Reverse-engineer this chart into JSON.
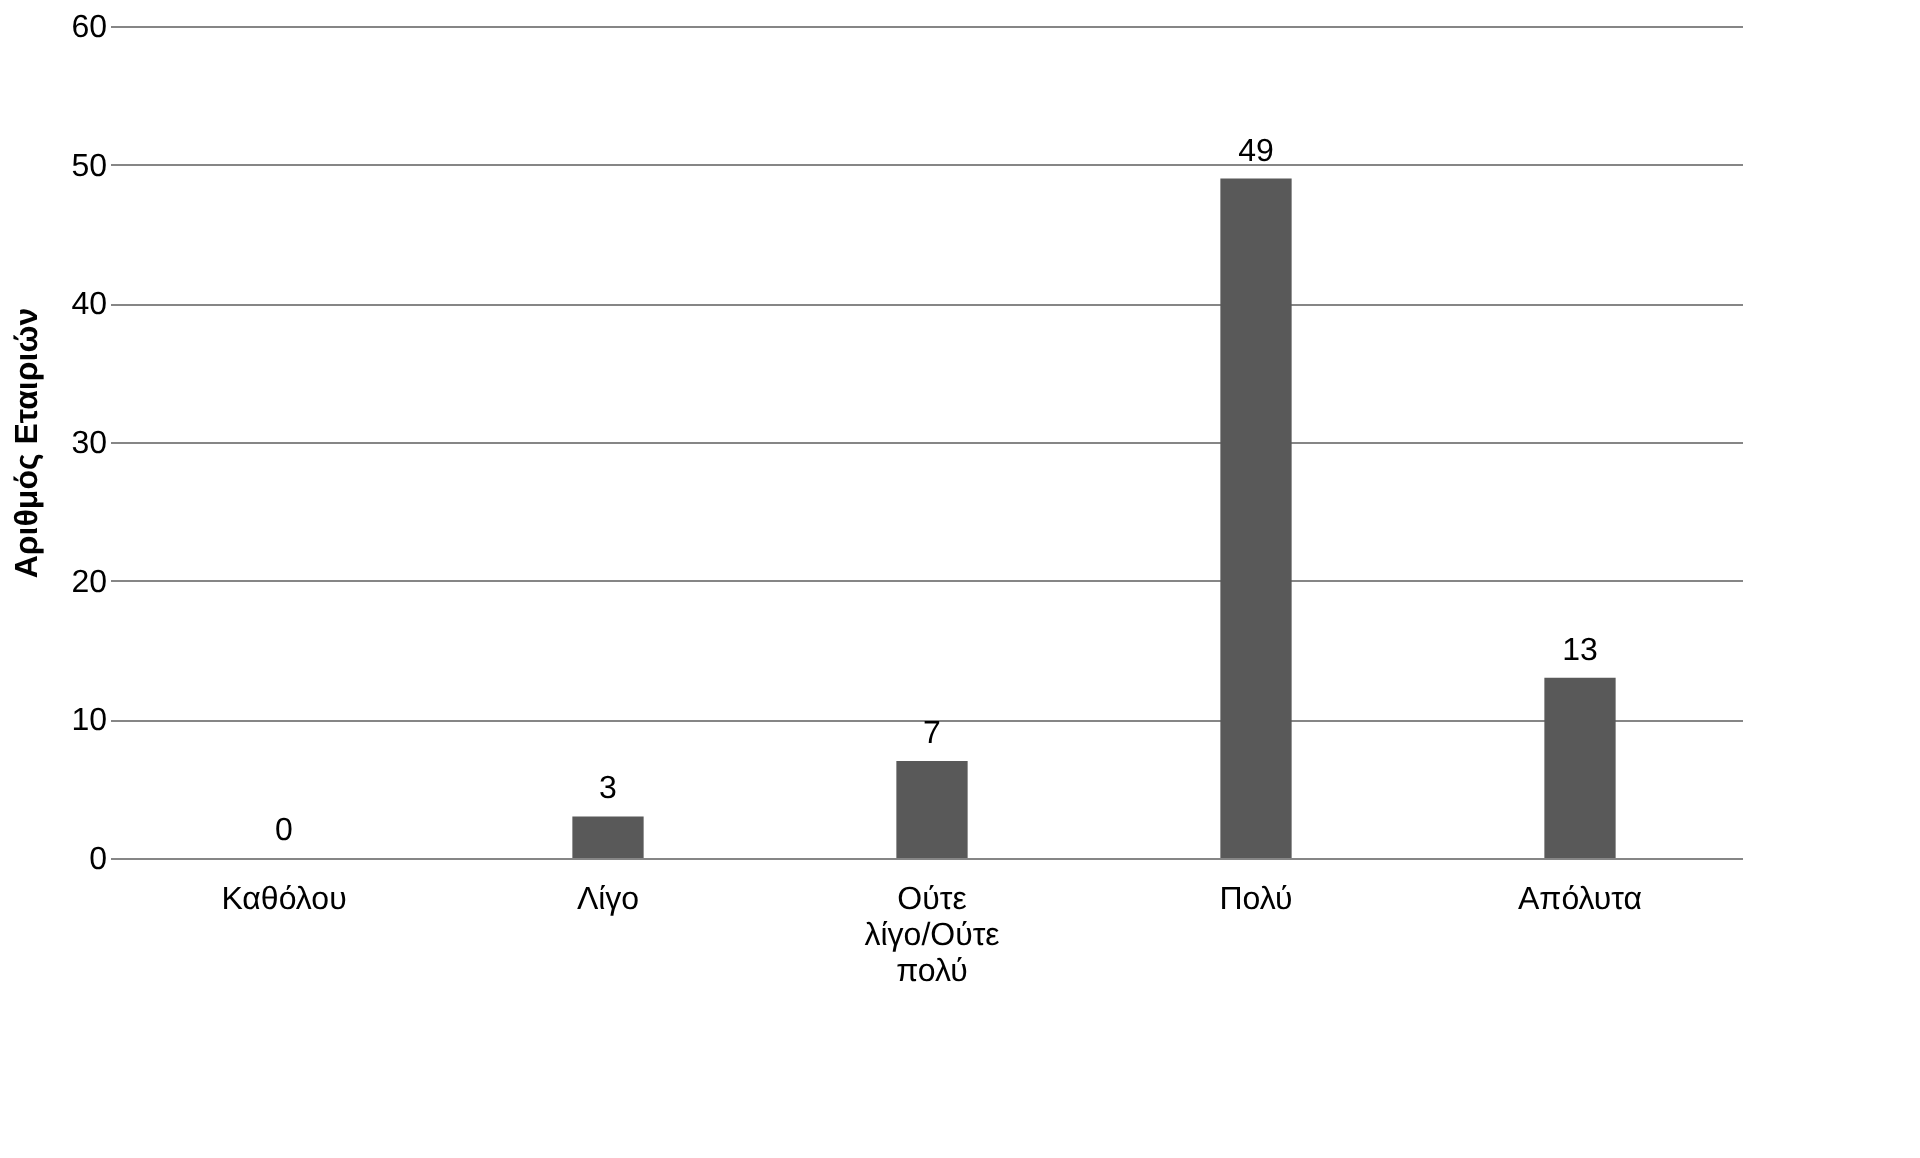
{
  "chart_data": {
    "type": "bar",
    "ylabel": "Αριθμός Εταιριών",
    "categories": [
      "Καθόλου",
      "Λίγο",
      "Ούτε λίγο/Ούτε πολύ",
      "Πολύ",
      "Απόλυτα"
    ],
    "values": [
      0,
      3,
      7,
      49,
      13
    ],
    "color": "#595959",
    "ylim": [
      0,
      60
    ],
    "yticks": [
      0,
      10,
      20,
      30,
      40,
      50,
      60
    ],
    "grid": "y",
    "data_labels": true
  }
}
